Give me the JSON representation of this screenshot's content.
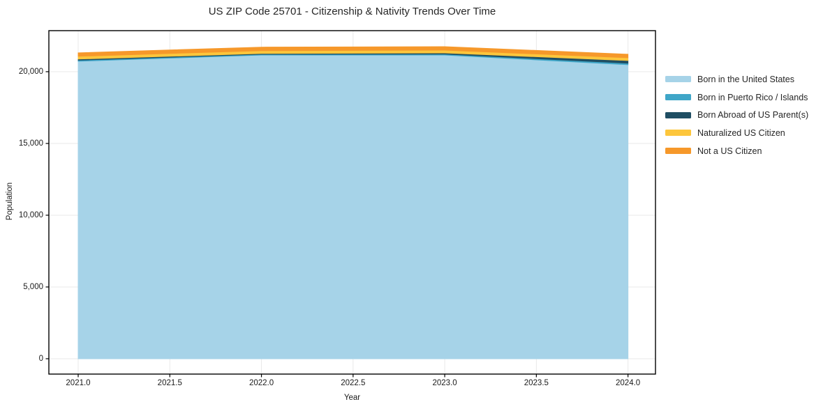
{
  "figure": {
    "background_color": "#ffffff",
    "plot_border_color": "#000000",
    "grid_color": "#e9e9e9",
    "tick_color": "#000000",
    "text_color": "#262626"
  },
  "chart_data": {
    "type": "area",
    "stacked": true,
    "title": "US ZIP Code 25701 - Citizenship & Nativity Trends Over Time",
    "xlabel": "Year",
    "ylabel": "Population",
    "x": [
      2021,
      2022,
      2023,
      2024
    ],
    "series": [
      {
        "name": "Born in the United States",
        "color": "#a6d3e8",
        "values": [
          20730,
          21160,
          21160,
          20490
        ]
      },
      {
        "name": "Born in Puerto Rico / Islands",
        "color": "#3fa6c8",
        "values": [
          75,
          55,
          70,
          100
        ]
      },
      {
        "name": "Born Abroad of US Parent(s)",
        "color": "#1f4e63",
        "values": [
          75,
          55,
          75,
          190
        ]
      },
      {
        "name": "Naturalized US Citizen",
        "color": "#fdc63c",
        "values": [
          195,
          195,
          195,
          195
        ]
      },
      {
        "name": "Not a US Citizen",
        "color": "#f6982a",
        "values": [
          240,
          245,
          245,
          240
        ]
      }
    ],
    "x_tick_labels": [
      "2021.0",
      "2021.5",
      "2022.0",
      "2022.5",
      "2023.0",
      "2023.5",
      "2024.0"
    ],
    "y_tick_values": [
      0,
      5000,
      10000,
      15000,
      20000
    ],
    "xlim": [
      2020.84,
      2024.15
    ],
    "ylim": [
      -1070,
      22860
    ],
    "grid": true,
    "legend_position": "right-outside"
  }
}
